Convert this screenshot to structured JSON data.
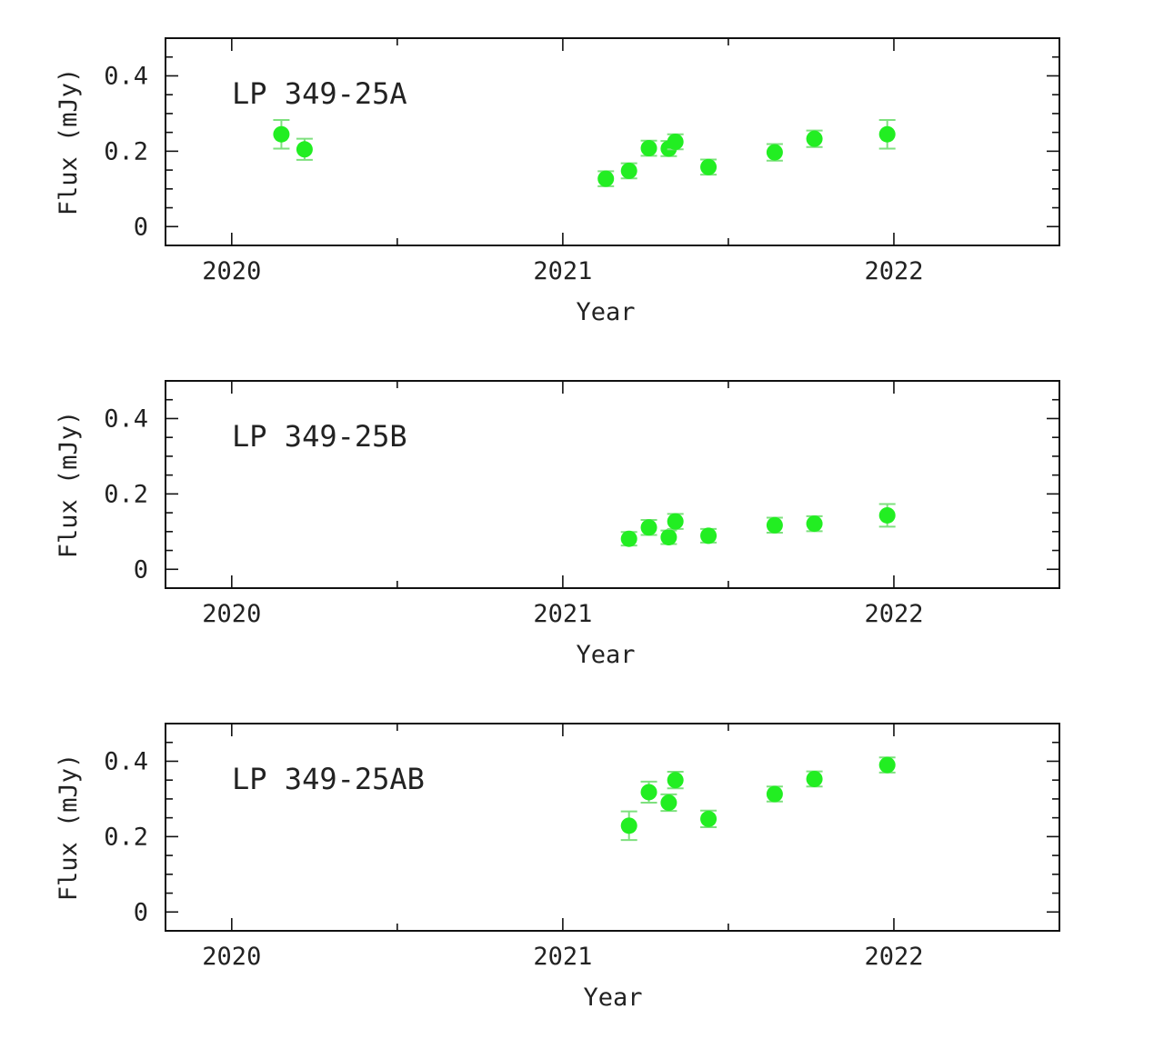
{
  "colors": {
    "marker": "#22ee22",
    "errorbar": "#7ee07e",
    "axis": "#111111",
    "text": "#222222"
  },
  "chart_data": [
    {
      "type": "scatter",
      "title": "LP 349-25A",
      "xlabel": "Year",
      "ylabel": "Flux (mJy)",
      "xlim": [
        2019.8,
        2022.5
      ],
      "ylim": [
        -0.05,
        0.5
      ],
      "xticks": [
        "2020",
        "2021",
        "2022"
      ],
      "xtick_values": [
        2020,
        2021,
        2022
      ],
      "yticks": [
        "0",
        "0.2",
        "0.4"
      ],
      "ytick_values": [
        0,
        0.2,
        0.4
      ],
      "grid": false,
      "points": [
        {
          "x": 2020.15,
          "y": 0.245,
          "err": 0.038
        },
        {
          "x": 2020.22,
          "y": 0.205,
          "err": 0.028
        },
        {
          "x": 2021.13,
          "y": 0.127,
          "err": 0.02
        },
        {
          "x": 2021.2,
          "y": 0.148,
          "err": 0.02
        },
        {
          "x": 2021.26,
          "y": 0.208,
          "err": 0.02
        },
        {
          "x": 2021.32,
          "y": 0.207,
          "err": 0.02
        },
        {
          "x": 2021.34,
          "y": 0.225,
          "err": 0.02
        },
        {
          "x": 2021.44,
          "y": 0.158,
          "err": 0.02
        },
        {
          "x": 2021.64,
          "y": 0.197,
          "err": 0.022
        },
        {
          "x": 2021.76,
          "y": 0.233,
          "err": 0.022
        },
        {
          "x": 2021.98,
          "y": 0.245,
          "err": 0.038
        }
      ]
    },
    {
      "type": "scatter",
      "title": "LP 349-25B",
      "xlabel": "Year",
      "ylabel": "Flux (mJy)",
      "xlim": [
        2019.8,
        2022.5
      ],
      "ylim": [
        -0.05,
        0.5
      ],
      "xticks": [
        "2020",
        "2021",
        "2022"
      ],
      "xtick_values": [
        2020,
        2021,
        2022
      ],
      "yticks": [
        "0",
        "0.2",
        "0.4"
      ],
      "ytick_values": [
        0,
        0.2,
        0.4
      ],
      "grid": false,
      "points": [
        {
          "x": 2021.2,
          "y": 0.081,
          "err": 0.018
        },
        {
          "x": 2021.26,
          "y": 0.111,
          "err": 0.02
        },
        {
          "x": 2021.32,
          "y": 0.085,
          "err": 0.018
        },
        {
          "x": 2021.34,
          "y": 0.127,
          "err": 0.02
        },
        {
          "x": 2021.44,
          "y": 0.089,
          "err": 0.018
        },
        {
          "x": 2021.64,
          "y": 0.117,
          "err": 0.02
        },
        {
          "x": 2021.76,
          "y": 0.121,
          "err": 0.02
        },
        {
          "x": 2021.98,
          "y": 0.143,
          "err": 0.03
        }
      ]
    },
    {
      "type": "scatter",
      "title": "LP 349-25AB",
      "xlabel": "Year",
      "ylabel": "Flux (mJy)",
      "xlim": [
        2019.8,
        2022.5
      ],
      "ylim": [
        -0.05,
        0.5
      ],
      "xticks": [
        "2020",
        "2021",
        "2022"
      ],
      "xtick_values": [
        2020,
        2021,
        2022
      ],
      "yticks": [
        "0",
        "0.2",
        "0.4"
      ],
      "ytick_values": [
        0,
        0.2,
        0.4
      ],
      "grid": false,
      "points": [
        {
          "x": 2021.2,
          "y": 0.229,
          "err": 0.038
        },
        {
          "x": 2021.26,
          "y": 0.318,
          "err": 0.028
        },
        {
          "x": 2021.32,
          "y": 0.29,
          "err": 0.022
        },
        {
          "x": 2021.34,
          "y": 0.35,
          "err": 0.022
        },
        {
          "x": 2021.44,
          "y": 0.247,
          "err": 0.022
        },
        {
          "x": 2021.64,
          "y": 0.313,
          "err": 0.02
        },
        {
          "x": 2021.76,
          "y": 0.353,
          "err": 0.02
        },
        {
          "x": 2021.98,
          "y": 0.39,
          "err": 0.02
        }
      ]
    }
  ]
}
